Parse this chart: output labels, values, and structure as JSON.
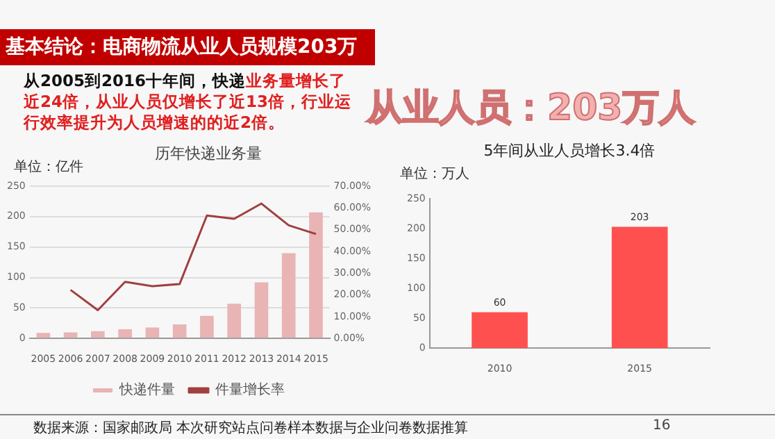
{
  "chart_data": [
    {
      "type": "bar",
      "title": "历年快递业务量",
      "annotations": [
        "基本结论：电商物流从业人员规模203万",
        "从2005到2016十年间，快递",
        "业务量增长了近24倍，从业人员仅增长了近13倍，行业运行效率提升为人员增速的的近2倍。",
        "单位：亿件",
        "数据来源：国家邮政局 本次研究站点问卷样本数据与企业问卷数据推算",
        "16"
      ],
      "categories": [
        "2005",
        "2006",
        "2007",
        "2008",
        "2009",
        "2010",
        "2011",
        "2012",
        "2013",
        "2014",
        "2015"
      ],
      "series": [
        {
          "name": "快递件量",
          "type": "bar",
          "color": "#e8b4b4",
          "values": [
            9,
            10,
            12,
            15,
            18,
            23,
            37,
            57,
            92,
            140,
            207
          ]
        },
        {
          "name": "件量增长率",
          "type": "line",
          "axis": "y2",
          "color": "#a0403f",
          "values": [
            null,
            22.3,
            13,
            26,
            24,
            25,
            56.5,
            55,
            62,
            52,
            48
          ]
        }
      ],
      "ylim": [
        0,
        250
      ],
      "yticks": [
        0,
        50,
        100,
        150,
        200,
        250
      ],
      "y2lim": [
        0,
        70
      ],
      "y2ticks": [
        {
          "value": 0,
          "label": "0.00%"
        },
        {
          "value": 10,
          "label": "10.00%"
        },
        {
          "value": 20,
          "label": "20.00%"
        },
        {
          "value": 30,
          "label": "30.00%"
        },
        {
          "value": 40,
          "label": "40.00%"
        },
        {
          "value": 50,
          "label": "50.00%"
        },
        {
          "value": 60,
          "label": "60.00%"
        },
        {
          "value": 70,
          "label": "70.00%"
        }
      ],
      "grid": "y",
      "legend": "bottom",
      "marker": "none"
    },
    {
      "type": "bar",
      "title": "5年间从业人员增长3.4倍",
      "annotations": [
        "从业人员：203万人",
        "单位：万人"
      ],
      "categories": [
        "2010",
        "2015"
      ],
      "values": [
        60,
        203
      ],
      "color": "#ff5050",
      "ylim": [
        0,
        250
      ],
      "yticks": [
        0,
        50,
        100,
        150,
        200,
        250
      ],
      "data_labels": true
    }
  ]
}
